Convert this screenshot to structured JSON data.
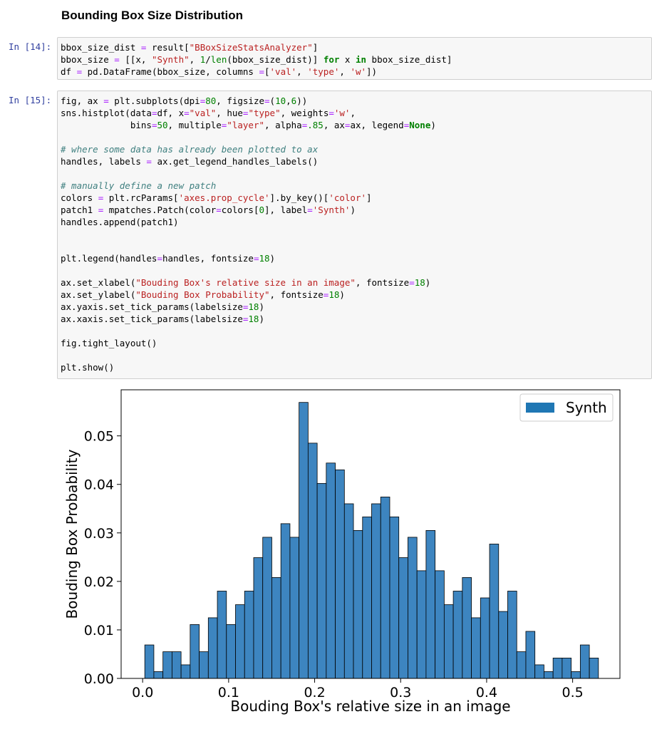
{
  "heading": "Bounding Box Size Distribution",
  "cells": [
    {
      "prompt": "In [14]:",
      "lines": [
        "bbox_size_dist = result[\"BBoxSizeStatsAnalyzer\"]",
        "bbox_size = [[x, \"Synth\", 1/len(bbox_size_dist)] for x in bbox_size_dist]",
        "df = pd.DataFrame(bbox_size, columns =['val', 'type', 'w'])"
      ]
    },
    {
      "prompt": "In [15]:",
      "lines": [
        "fig, ax = plt.subplots(dpi=80, figsize=(10,6))",
        "sns.histplot(data=df, x=\"val\", hue=\"type\", weights='w',",
        "             bins=50, multiple=\"layer\", alpha=.85, ax=ax, legend=None)",
        "",
        "# where some data has already been plotted to ax",
        "handles, labels = ax.get_legend_handles_labels()",
        "",
        "# manually define a new patch",
        "colors = plt.rcParams['axes.prop_cycle'].by_key()['color']",
        "patch1 = mpatches.Patch(color=colors[0], label='Synth')",
        "handles.append(patch1)",
        "",
        "",
        "plt.legend(handles=handles, fontsize=18)",
        "",
        "ax.set_xlabel(\"Bouding Box's relative size in an image\", fontsize=18)",
        "ax.set_ylabel(\"Bouding Box Probability\", fontsize=18)",
        "ax.yaxis.set_tick_params(labelsize=18)",
        "ax.xaxis.set_tick_params(labelsize=18)",
        "",
        "fig.tight_layout()",
        "",
        "plt.show()"
      ]
    }
  ],
  "chart_data": {
    "type": "bar",
    "title": "",
    "xlabel": "Bouding Box's relative size in an image",
    "ylabel": "Bouding Box Probability",
    "xlim": [
      -0.025,
      0.555
    ],
    "ylim": [
      0,
      0.0595
    ],
    "xticks": [
      0.0,
      0.1,
      0.2,
      0.3,
      0.4,
      0.5
    ],
    "xtick_labels": [
      "0.0",
      "0.1",
      "0.2",
      "0.3",
      "0.4",
      "0.5"
    ],
    "yticks": [
      0.0,
      0.01,
      0.02,
      0.03,
      0.04,
      0.05
    ],
    "ytick_labels": [
      "0.00",
      "0.01",
      "0.02",
      "0.03",
      "0.04",
      "0.05"
    ],
    "bin_start": 0.0025,
    "bin_width": 0.01055,
    "values": [
      0.0069,
      0.0014,
      0.0055,
      0.0055,
      0.0028,
      0.0111,
      0.0055,
      0.0125,
      0.018,
      0.0111,
      0.0152,
      0.018,
      0.0249,
      0.0291,
      0.0208,
      0.0319,
      0.0291,
      0.0569,
      0.0485,
      0.0402,
      0.0444,
      0.043,
      0.036,
      0.0305,
      0.0333,
      0.036,
      0.0374,
      0.0333,
      0.0249,
      0.0291,
      0.0222,
      0.0305,
      0.0222,
      0.0152,
      0.018,
      0.0208,
      0.0125,
      0.0166,
      0.0277,
      0.0138,
      0.018,
      0.0055,
      0.0097,
      0.0028,
      0.0014,
      0.0042,
      0.0042,
      0.0014,
      0.0069,
      0.0042
    ],
    "bar_color": "#3d85c0",
    "bar_edge": "#000000",
    "legend": {
      "position": "top-right",
      "entries": [
        {
          "name": "Synth",
          "color": "#1f77b4"
        }
      ]
    },
    "grid": false
  }
}
